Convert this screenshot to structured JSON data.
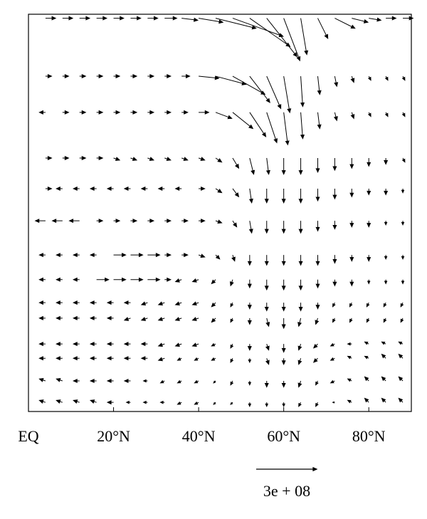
{
  "chart_data": {
    "type": "quiver",
    "xlim": [
      0,
      90
    ],
    "ylim": [
      0,
      100
    ],
    "xticks": [
      {
        "value": 0,
        "label": "EQ"
      },
      {
        "value": 20,
        "label": "20°N"
      },
      {
        "value": 40,
        "label": "40°N"
      },
      {
        "value": 60,
        "label": "60°N"
      },
      {
        "value": 80,
        "label": "80°N"
      }
    ],
    "key": {
      "value": 300000000,
      "label": "3e + 08"
    },
    "x": [
      4,
      8,
      12,
      16,
      20,
      24,
      28,
      32,
      36,
      40,
      44,
      48,
      52,
      56,
      60,
      64,
      68,
      72,
      76,
      80,
      84,
      88
    ],
    "rows": [
      {
        "y": 99,
        "u": [
          50000000.0,
          50000000.0,
          50000000.0,
          50000000.0,
          50000000.0,
          50000000.0,
          50000000.0,
          60000000.0,
          80000000.0,
          120000000.0,
          200000000.0,
          250000000.0,
          200000000.0,
          150000000.0,
          80000000.0,
          30000000.0,
          50000000.0,
          100000000.0,
          80000000.0,
          60000000.0,
          50000000.0,
          50000000.0
        ],
        "v": [
          0,
          0,
          0,
          0,
          0,
          0,
          0,
          0,
          -10000000.0,
          -20000000.0,
          -50000000.0,
          -90000000.0,
          -140000000.0,
          -190000000.0,
          -210000000.0,
          -180000000.0,
          -100000000.0,
          -50000000.0,
          -20000000.0,
          -10000000.0,
          0,
          0
        ]
      },
      {
        "y": 84.4,
        "u": [
          30000000.0,
          30000000.0,
          30000000.0,
          30000000.0,
          30000000.0,
          30000000.0,
          30000000.0,
          30000000.0,
          40000000.0,
          100000000.0,
          150000000.0,
          160000000.0,
          100000000.0,
          70000000.0,
          30000000.0,
          10000000.0,
          10000000.0,
          10000000.0,
          10000000.0,
          10000000.0,
          10000000.0,
          10000000.0
        ],
        "v": [
          0,
          0,
          0,
          0,
          0,
          0,
          0,
          0,
          0,
          -10000000.0,
          -40000000.0,
          -90000000.0,
          -130000000.0,
          -160000000.0,
          -180000000.0,
          -150000000.0,
          -90000000.0,
          -50000000.0,
          -30000000.0,
          -20000000.0,
          -20000000.0,
          -20000000.0
        ]
      },
      {
        "y": 75.3,
        "u": [
          -30000000.0,
          30000000.0,
          30000000.0,
          30000000.0,
          30000000.0,
          30000000.0,
          30000000.0,
          30000000.0,
          30000000.0,
          50000000.0,
          80000000.0,
          100000000.0,
          80000000.0,
          50000000.0,
          20000000.0,
          10000000.0,
          10000000.0,
          10000000.0,
          10000000.0,
          10000000.0,
          10000000.0,
          10000000.0
        ],
        "v": [
          0,
          0,
          0,
          0,
          0,
          0,
          0,
          0,
          0,
          0,
          -30000000.0,
          -80000000.0,
          -120000000.0,
          -150000000.0,
          -160000000.0,
          -130000000.0,
          -80000000.0,
          -40000000.0,
          -30000000.0,
          -20000000.0,
          -20000000.0,
          -20000000.0
        ]
      },
      {
        "y": 63.8,
        "u": [
          30000000.0,
          30000000.0,
          30000000.0,
          30000000.0,
          30000000.0,
          30000000.0,
          30000000.0,
          30000000.0,
          30000000.0,
          30000000.0,
          30000000.0,
          30000000.0,
          20000000.0,
          10000000.0,
          0,
          0,
          0,
          0,
          0,
          0,
          0,
          10000000.0
        ],
        "v": [
          0,
          0,
          0,
          0,
          -10000000.0,
          -10000000.0,
          -10000000.0,
          -10000000.0,
          -10000000.0,
          -10000000.0,
          -20000000.0,
          -50000000.0,
          -80000000.0,
          -80000000.0,
          -80000000.0,
          -80000000.0,
          -70000000.0,
          -60000000.0,
          -50000000.0,
          -40000000.0,
          -30000000.0,
          -20000000.0
        ]
      },
      {
        "y": 56.1,
        "u": [
          30000000.0,
          -30000000.0,
          -30000000.0,
          -30000000.0,
          -30000000.0,
          -30000000.0,
          -30000000.0,
          -30000000.0,
          -30000000.0,
          30000000.0,
          30000000.0,
          30000000.0,
          10000000.0,
          0,
          0,
          0,
          0,
          0,
          0,
          0,
          0,
          0
        ],
        "v": [
          0,
          0,
          0,
          0,
          0,
          0,
          0,
          0,
          0,
          0,
          -20000000.0,
          -40000000.0,
          -70000000.0,
          -70000000.0,
          -70000000.0,
          -70000000.0,
          -60000000.0,
          -50000000.0,
          -40000000.0,
          -30000000.0,
          -30000000.0,
          -20000000.0
        ]
      },
      {
        "y": 48,
        "u": [
          -50000000.0,
          -50000000.0,
          -50000000.0,
          30000000.0,
          30000000.0,
          30000000.0,
          30000000.0,
          30000000.0,
          30000000.0,
          30000000.0,
          30000000.0,
          20000000.0,
          10000000.0,
          0,
          0,
          0,
          0,
          0,
          0,
          0,
          0,
          0
        ],
        "v": [
          0,
          0,
          0,
          0,
          0,
          0,
          0,
          0,
          0,
          0,
          -10000000.0,
          -30000000.0,
          -60000000.0,
          -60000000.0,
          -60000000.0,
          -60000000.0,
          -50000000.0,
          -40000000.0,
          -30000000.0,
          -30000000.0,
          -20000000.0,
          -20000000.0
        ]
      },
      {
        "y": 39.4,
        "u": [
          -30000000.0,
          -30000000.0,
          -30000000.0,
          -30000000.0,
          60000000.0,
          60000000.0,
          60000000.0,
          30000000.0,
          30000000.0,
          30000000.0,
          20000000.0,
          10000000.0,
          0,
          0,
          0,
          0,
          0,
          0,
          0,
          0,
          0,
          0
        ],
        "v": [
          0,
          0,
          0,
          0,
          0,
          0,
          0,
          0,
          0,
          -10000000.0,
          -20000000.0,
          -30000000.0,
          -50000000.0,
          -50000000.0,
          -50000000.0,
          -50000000.0,
          -50000000.0,
          -40000000.0,
          -30000000.0,
          -30000000.0,
          -20000000.0,
          -20000000.0
        ]
      },
      {
        "y": 33.2,
        "u": [
          -30000000.0,
          -30000000.0,
          -30000000.0,
          60000000.0,
          60000000.0,
          60000000.0,
          60000000.0,
          30000000.0,
          -30000000.0,
          -30000000.0,
          -20000000.0,
          -10000000.0,
          0,
          0,
          0,
          0,
          0,
          0,
          0,
          0,
          0,
          0
        ],
        "v": [
          0,
          0,
          0,
          0,
          0,
          0,
          0,
          0,
          -10000000.0,
          -10000000.0,
          -20000000.0,
          -30000000.0,
          -40000000.0,
          -50000000.0,
          -50000000.0,
          -50000000.0,
          -40000000.0,
          -30000000.0,
          -30000000.0,
          -20000000.0,
          -20000000.0,
          -20000000.0
        ]
      },
      {
        "y": 27.4,
        "u": [
          -30000000.0,
          -30000000.0,
          -30000000.0,
          -30000000.0,
          -30000000.0,
          -30000000.0,
          -30000000.0,
          -30000000.0,
          -30000000.0,
          -30000000.0,
          -20000000.0,
          -10000000.0,
          0,
          0,
          0,
          0,
          0,
          -10000000.0,
          -10000000.0,
          -10000000.0,
          -10000000.0,
          -10000000.0
        ],
        "v": [
          0,
          0,
          0,
          0,
          0,
          0,
          -10000000.0,
          -10000000.0,
          -10000000.0,
          -10000000.0,
          -20000000.0,
          -20000000.0,
          -30000000.0,
          -40000000.0,
          -40000000.0,
          -40000000.0,
          -30000000.0,
          -20000000.0,
          -20000000.0,
          -20000000.0,
          -20000000.0,
          -20000000.0
        ]
      },
      {
        "y": 23.5,
        "u": [
          -30000000.0,
          -30000000.0,
          -30000000.0,
          -30000000.0,
          -30000000.0,
          -30000000.0,
          -30000000.0,
          -30000000.0,
          -30000000.0,
          -30000000.0,
          -20000000.0,
          -10000000.0,
          0,
          10000000.0,
          0,
          -10000000.0,
          -10000000.0,
          -10000000.0,
          -10000000.0,
          -10000000.0,
          -10000000.0,
          -10000000.0
        ],
        "v": [
          0,
          0,
          0,
          0,
          0,
          -10000000.0,
          -10000000.0,
          -10000000.0,
          -10000000.0,
          -10000000.0,
          -20000000.0,
          -20000000.0,
          -30000000.0,
          -40000000.0,
          -50000000.0,
          -40000000.0,
          -30000000.0,
          -20000000.0,
          -20000000.0,
          -20000000.0,
          -20000000.0,
          -20000000.0
        ]
      },
      {
        "y": 17,
        "u": [
          -30000000.0,
          -30000000.0,
          -30000000.0,
          -30000000.0,
          -30000000.0,
          -30000000.0,
          -30000000.0,
          -30000000.0,
          -30000000.0,
          -30000000.0,
          -20000000.0,
          -10000000.0,
          0,
          10000000.0,
          0,
          -10000000.0,
          -20000000.0,
          -20000000.0,
          -20000000.0,
          -20000000.0,
          -20000000.0,
          -20000000.0
        ],
        "v": [
          0,
          0,
          0,
          0,
          0,
          0,
          0,
          -10000000.0,
          -10000000.0,
          -10000000.0,
          -10000000.0,
          -20000000.0,
          -30000000.0,
          -30000000.0,
          -40000000.0,
          -30000000.0,
          -20000000.0,
          -10000000.0,
          0,
          10000000.0,
          10000000.0,
          10000000.0
        ]
      },
      {
        "y": 13.4,
        "u": [
          -30000000.0,
          -30000000.0,
          -30000000.0,
          -30000000.0,
          -30000000.0,
          -30000000.0,
          -30000000.0,
          -30000000.0,
          -20000000.0,
          -20000000.0,
          -20000000.0,
          -10000000.0,
          0,
          10000000.0,
          0,
          -10000000.0,
          -20000000.0,
          -20000000.0,
          -20000000.0,
          -20000000.0,
          -20000000.0,
          -20000000.0
        ],
        "v": [
          0,
          0,
          0,
          0,
          0,
          0,
          0,
          -10000000.0,
          -10000000.0,
          -10000000.0,
          -10000000.0,
          -20000000.0,
          -20000000.0,
          -30000000.0,
          -30000000.0,
          -30000000.0,
          -20000000.0,
          -10000000.0,
          10000000.0,
          10000000.0,
          20000000.0,
          20000000.0
        ]
      },
      {
        "y": 7.7,
        "u": [
          -30000000.0,
          -30000000.0,
          -30000000.0,
          -30000000.0,
          -30000000.0,
          -30000000.0,
          -20000000.0,
          -20000000.0,
          -20000000.0,
          -20000000.0,
          -10000000.0,
          -10000000.0,
          0,
          0,
          0,
          -10000000.0,
          -10000000.0,
          -20000000.0,
          -20000000.0,
          -20000000.0,
          -20000000.0,
          -20000000.0
        ],
        "v": [
          10000000.0,
          10000000.0,
          0,
          0,
          0,
          0,
          0,
          -10000000.0,
          -10000000.0,
          -10000000.0,
          -10000000.0,
          -20000000.0,
          -20000000.0,
          -30000000.0,
          -30000000.0,
          -30000000.0,
          -20000000.0,
          -10000000.0,
          10000000.0,
          20000000.0,
          20000000.0,
          20000000.0
        ]
      },
      {
        "y": 2.3,
        "u": [
          -30000000.0,
          -30000000.0,
          -30000000.0,
          -30000000.0,
          -30000000.0,
          -20000000.0,
          -20000000.0,
          -20000000.0,
          -20000000.0,
          -20000000.0,
          -10000000.0,
          -10000000.0,
          0,
          0,
          0,
          -10000000.0,
          -10000000.0,
          -10000000.0,
          -20000000.0,
          -20000000.0,
          -20000000.0,
          -20000000.0
        ],
        "v": [
          10000000.0,
          10000000.0,
          10000000.0,
          10000000.0,
          0,
          0,
          0,
          0,
          -10000000.0,
          -10000000.0,
          -10000000.0,
          -10000000.0,
          -20000000.0,
          -20000000.0,
          -20000000.0,
          -20000000.0,
          -20000000.0,
          0,
          10000000.0,
          20000000.0,
          20000000.0,
          20000000.0
        ]
      }
    ]
  }
}
